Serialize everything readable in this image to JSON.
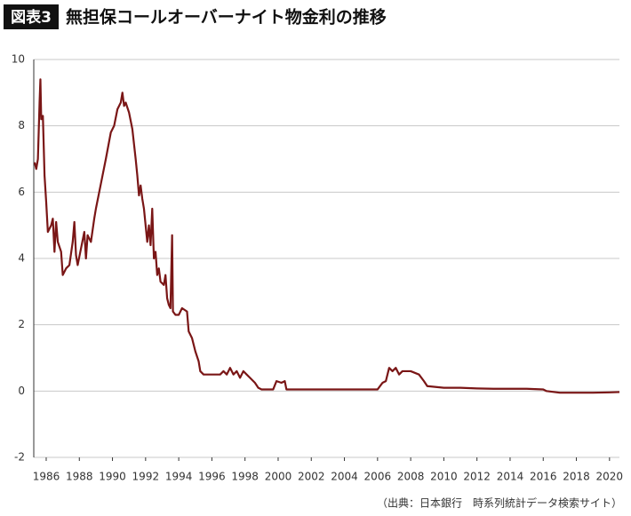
{
  "chart_data": {
    "type": "line",
    "label": "図表3",
    "title": "無担保コールオーバーナイト物金利の推移",
    "source": "（出典：日本銀行　時系列統計データ検索サイト）",
    "xlim": [
      1985.25,
      2020.6
    ],
    "xticks": [
      1986,
      1988,
      1990,
      1992,
      1994,
      1996,
      1998,
      2000,
      2002,
      2004,
      2006,
      2008,
      2010,
      2012,
      2014,
      2016,
      2018,
      2020
    ],
    "ylim": [
      -2,
      10
    ],
    "yticks": [
      -2,
      0,
      2,
      4,
      6,
      8,
      10
    ],
    "grid": true,
    "series": [
      {
        "name": "無担保コールオーバーナイト物",
        "color": "#7a1616",
        "x": [
          1985.3,
          1985.4,
          1985.5,
          1985.6,
          1985.65,
          1985.7,
          1985.8,
          1985.9,
          1986.0,
          1986.1,
          1986.3,
          1986.4,
          1986.5,
          1986.6,
          1986.7,
          1986.9,
          1987.0,
          1987.2,
          1987.4,
          1987.6,
          1987.7,
          1987.8,
          1987.9,
          1988.1,
          1988.3,
          1988.4,
          1988.5,
          1988.7,
          1988.9,
          1989.0,
          1989.2,
          1989.4,
          1989.6,
          1989.9,
          1990.1,
          1990.3,
          1990.5,
          1990.6,
          1990.7,
          1990.8,
          1991.0,
          1991.2,
          1991.4,
          1991.5,
          1991.6,
          1991.7,
          1991.8,
          1991.9,
          1992.0,
          1992.1,
          1992.2,
          1992.3,
          1992.4,
          1992.5,
          1992.6,
          1992.7,
          1992.8,
          1992.9,
          1993.1,
          1993.2,
          1993.3,
          1993.4,
          1993.5,
          1993.6,
          1993.65,
          1993.8,
          1994.0,
          1994.2,
          1994.5,
          1994.6,
          1994.8,
          1995.0,
          1995.2,
          1995.3,
          1995.5,
          1995.7,
          1996.0,
          1996.5,
          1996.7,
          1996.9,
          1997.1,
          1997.3,
          1997.5,
          1997.7,
          1997.9,
          1998.1,
          1998.3,
          1998.6,
          1998.8,
          1999.0,
          1999.5,
          1999.7,
          1999.9,
          2000.2,
          2000.4,
          2000.5,
          2002.0,
          2003.0,
          2004.0,
          2005.0,
          2006.0,
          2006.3,
          2006.5,
          2006.6,
          2006.7,
          2006.9,
          2007.1,
          2007.3,
          2007.5,
          2008.0,
          2008.5,
          2008.8,
          2009.0,
          2010.0,
          2011.0,
          2012.0,
          2013.0,
          2014.0,
          2015.0,
          2016.0,
          2016.2,
          2017.0,
          2018.0,
          2019.0,
          2020.0,
          2020.6
        ],
        "values": [
          6.9,
          6.7,
          7.0,
          8.7,
          9.4,
          8.2,
          8.3,
          6.5,
          5.7,
          4.8,
          5.0,
          5.2,
          4.2,
          5.1,
          4.5,
          4.2,
          3.5,
          3.7,
          3.8,
          4.5,
          5.1,
          4.1,
          3.8,
          4.3,
          4.8,
          4.0,
          4.7,
          4.5,
          5.2,
          5.5,
          6.0,
          6.5,
          7.0,
          7.8,
          8.0,
          8.5,
          8.7,
          9.0,
          8.6,
          8.7,
          8.4,
          7.9,
          7.0,
          6.5,
          5.9,
          6.2,
          5.8,
          5.5,
          5.0,
          4.5,
          5.0,
          4.4,
          5.5,
          4.0,
          4.2,
          3.5,
          3.7,
          3.3,
          3.2,
          3.5,
          2.8,
          2.6,
          2.5,
          4.7,
          2.4,
          2.3,
          2.3,
          2.5,
          2.4,
          1.8,
          1.6,
          1.2,
          0.9,
          0.6,
          0.5,
          0.5,
          0.5,
          0.5,
          0.6,
          0.5,
          0.7,
          0.5,
          0.6,
          0.4,
          0.6,
          0.5,
          0.4,
          0.25,
          0.1,
          0.05,
          0.05,
          0.05,
          0.3,
          0.25,
          0.3,
          0.05,
          0.05,
          0.05,
          0.05,
          0.05,
          0.05,
          0.25,
          0.3,
          0.5,
          0.7,
          0.6,
          0.7,
          0.5,
          0.6,
          0.6,
          0.5,
          0.3,
          0.15,
          0.1,
          0.1,
          0.08,
          0.07,
          0.07,
          0.07,
          0.05,
          0.0,
          -0.05,
          -0.05,
          -0.05,
          -0.04,
          -0.03
        ]
      }
    ]
  }
}
